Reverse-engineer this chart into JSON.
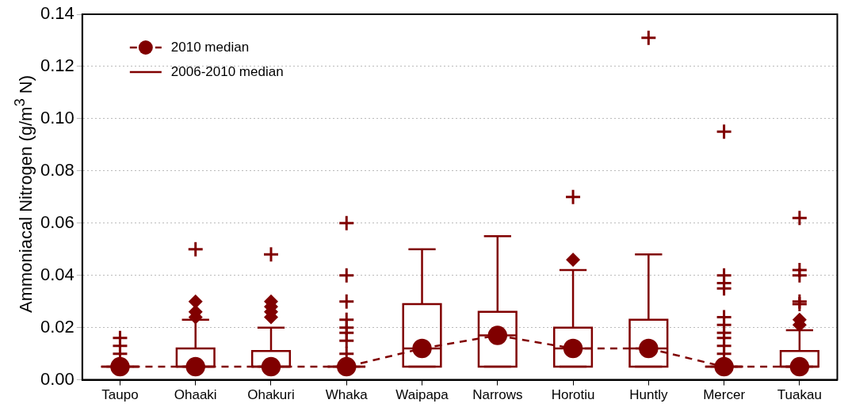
{
  "chart_data": {
    "type": "box",
    "ylabel": "Ammoniacal Nitrogen (g/m$^{3}$ N)",
    "categories": [
      "Taupo",
      "Ohaaki",
      "Ohakuri",
      "Whaka",
      "Waipapa",
      "Narrows",
      "Horotiu",
      "Huntly",
      "Mercer",
      "Tuakau"
    ],
    "ylim": [
      0,
      0.14
    ],
    "yticks": [
      {
        "value": 0,
        "label": "0.00"
      },
      {
        "value": 0.02,
        "label": "0.02"
      },
      {
        "value": 0.04,
        "label": "0.04"
      },
      {
        "value": 0.06,
        "label": "0.06"
      },
      {
        "value": 0.08,
        "label": "0.08"
      },
      {
        "value": 0.1,
        "label": "0.10"
      },
      {
        "value": 0.12,
        "label": "0.12"
      },
      {
        "value": 0.14,
        "label": "0.14"
      }
    ],
    "grid": "y",
    "legend": "top left",
    "series": [
      {
        "name": "2010 median",
        "type": "line",
        "color": "#800000",
        "line_style": "dashed",
        "marker": "circle",
        "values": [
          0.005,
          0.005,
          0.005,
          0.005,
          0.012,
          0.017,
          0.012,
          0.012,
          0.005,
          0.005
        ]
      },
      {
        "name": "2006-2010 median",
        "color": "#800000",
        "boxes": [
          {
            "low": 0.005,
            "q1": 0.005,
            "median": 0.005,
            "q3": 0.005,
            "high": 0.005
          },
          {
            "low": 0.005,
            "q1": 0.005,
            "median": 0.005,
            "q3": 0.012,
            "high": 0.023,
            "outliers": [
              0.03,
              0.026,
              0.024
            ]
          },
          {
            "low": 0.005,
            "q1": 0.005,
            "median": 0.005,
            "q3": 0.011,
            "high": 0.02,
            "outliers": [
              0.03,
              0.028,
              0.026,
              0.024
            ]
          },
          {
            "low": 0.005,
            "q1": 0.005,
            "median": 0.005,
            "q3": 0.005,
            "high": 0.005
          },
          {
            "low": 0.005,
            "q1": 0.005,
            "median": 0.012,
            "q3": 0.029,
            "high": 0.05
          },
          {
            "low": 0.005,
            "q1": 0.005,
            "median": 0.017,
            "q3": 0.026,
            "high": 0.055
          },
          {
            "low": 0.005,
            "q1": 0.005,
            "median": 0.012,
            "q3": 0.02,
            "high": 0.042,
            "outliers": [
              0.046
            ]
          },
          {
            "low": 0.005,
            "q1": 0.005,
            "median": 0.012,
            "q3": 0.023,
            "high": 0.048
          },
          {
            "low": 0.005,
            "q1": 0.005,
            "median": 0.005,
            "q3": 0.005,
            "high": 0.005
          },
          {
            "low": 0.005,
            "q1": 0.005,
            "median": 0.005,
            "q3": 0.011,
            "high": 0.019,
            "outliers": [
              0.023,
              0.021
            ]
          }
        ]
      },
      {
        "type": "scatter",
        "color": "#800000",
        "marker": "cross",
        "x": [
          "Taupo",
          "Taupo",
          "Taupo",
          "Ohaaki",
          "Ohakuri",
          "Whaka",
          "Whaka",
          "Whaka",
          "Whaka",
          "Whaka",
          "Whaka",
          "Whaka",
          "Whaka",
          "Horotiu",
          "Huntly",
          "Mercer",
          "Mercer",
          "Mercer",
          "Mercer",
          "Mercer",
          "Mercer",
          "Mercer",
          "Mercer",
          "Mercer",
          "Mercer",
          "Tuakau",
          "Tuakau",
          "Tuakau",
          "Tuakau",
          "Tuakau"
        ],
        "values": [
          0.016,
          0.013,
          0.01,
          0.05,
          0.048,
          0.06,
          0.04,
          0.03,
          0.023,
          0.02,
          0.018,
          0.015,
          0.01,
          0.07,
          0.131,
          0.095,
          0.04,
          0.037,
          0.035,
          0.024,
          0.021,
          0.018,
          0.016,
          0.013,
          0.01,
          0.062,
          0.042,
          0.04,
          0.03,
          0.029
        ]
      }
    ]
  }
}
